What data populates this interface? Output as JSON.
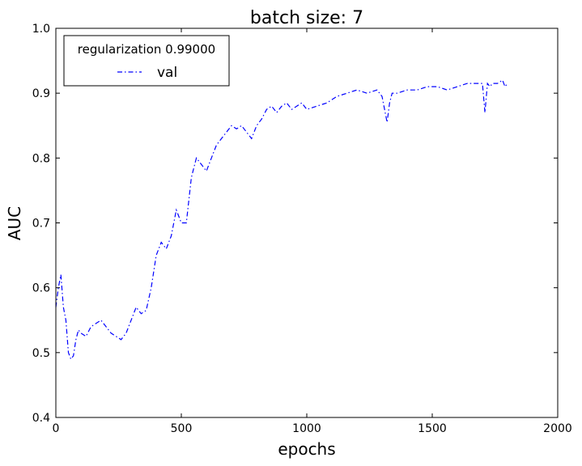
{
  "chart_data": {
    "type": "line",
    "title": "batch size: 7",
    "xlabel": "epochs",
    "ylabel": "AUC",
    "xlim": [
      0,
      2000
    ],
    "ylim": [
      0.4,
      1.0
    ],
    "xticks": [
      "0",
      "500",
      "1000",
      "1500",
      "2000"
    ],
    "yticks": [
      "0.4",
      "0.5",
      "0.6",
      "0.7",
      "0.8",
      "0.9",
      "1.0"
    ],
    "grid": false,
    "legend": {
      "title": "regularization 0.99000",
      "placement": "top-left"
    },
    "series": [
      {
        "name": "val",
        "color": "#0000ff",
        "linestyle": "dash-dot",
        "x": [
          0,
          10,
          20,
          30,
          40,
          50,
          60,
          70,
          80,
          90,
          100,
          120,
          140,
          160,
          180,
          200,
          220,
          240,
          260,
          280,
          300,
          320,
          340,
          360,
          380,
          400,
          420,
          440,
          460,
          480,
          500,
          520,
          540,
          560,
          580,
          600,
          620,
          640,
          660,
          680,
          700,
          720,
          740,
          760,
          780,
          800,
          820,
          840,
          860,
          880,
          900,
          920,
          940,
          960,
          980,
          1000,
          1040,
          1080,
          1120,
          1160,
          1200,
          1240,
          1280,
          1300,
          1320,
          1330,
          1340,
          1360,
          1400,
          1440,
          1480,
          1520,
          1560,
          1600,
          1640,
          1680,
          1700,
          1710,
          1720,
          1730,
          1740,
          1760,
          1780,
          1790,
          1800
        ],
        "y": [
          0.57,
          0.6,
          0.62,
          0.57,
          0.55,
          0.5,
          0.49,
          0.495,
          0.52,
          0.535,
          0.53,
          0.525,
          0.54,
          0.545,
          0.55,
          0.54,
          0.53,
          0.525,
          0.52,
          0.53,
          0.55,
          0.57,
          0.56,
          0.565,
          0.6,
          0.65,
          0.67,
          0.66,
          0.68,
          0.72,
          0.7,
          0.7,
          0.77,
          0.8,
          0.79,
          0.78,
          0.8,
          0.82,
          0.83,
          0.84,
          0.85,
          0.845,
          0.85,
          0.84,
          0.83,
          0.85,
          0.86,
          0.875,
          0.88,
          0.87,
          0.88,
          0.885,
          0.875,
          0.88,
          0.885,
          0.875,
          0.88,
          0.885,
          0.895,
          0.9,
          0.905,
          0.9,
          0.905,
          0.895,
          0.855,
          0.885,
          0.9,
          0.9,
          0.905,
          0.905,
          0.91,
          0.91,
          0.905,
          0.91,
          0.915,
          0.915,
          0.915,
          0.87,
          0.915,
          0.91,
          0.915,
          0.915,
          0.92,
          0.91,
          0.915
        ]
      }
    ]
  }
}
